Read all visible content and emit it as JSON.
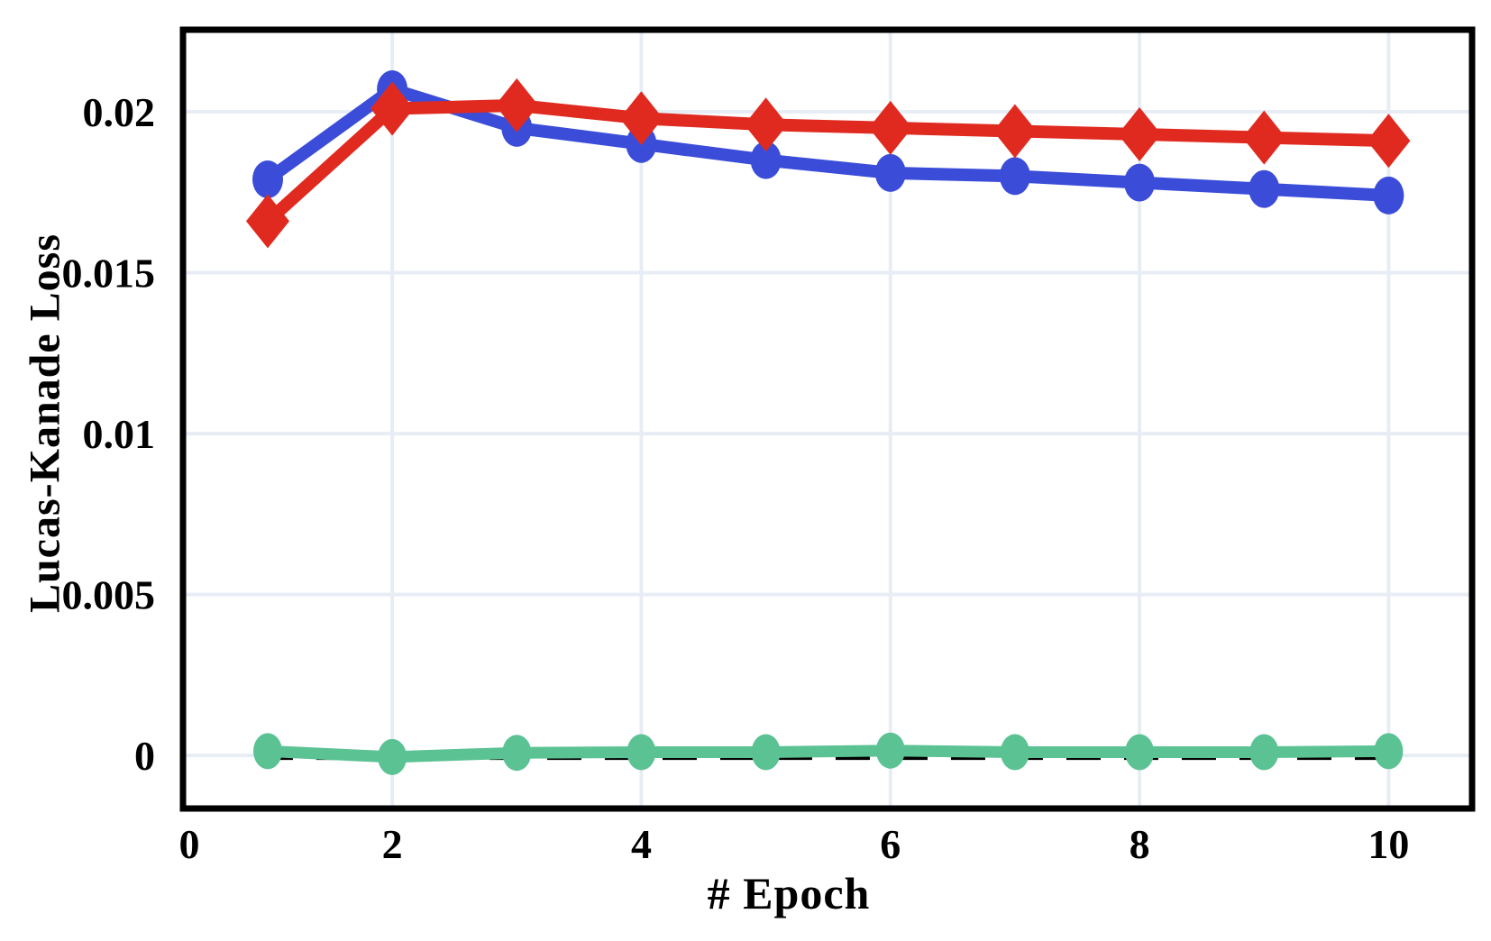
{
  "chart_data": {
    "type": "line",
    "title": "",
    "xlabel": "# Epoch",
    "ylabel": "Lucas-Kanade Loss",
    "x": [
      1,
      2,
      3,
      4,
      5,
      6,
      7,
      8,
      9,
      10
    ],
    "series": [
      {
        "id": "series_red_diamond",
        "marker": "diamond",
        "color": "#E02A20",
        "values": [
          0.0166,
          0.0201,
          0.0202,
          0.0198,
          0.0196,
          0.0195,
          0.0194,
          0.0193,
          0.0192,
          0.0191
        ]
      },
      {
        "id": "series_blue_circle",
        "marker": "circle",
        "color": "#3B4DD8",
        "values": [
          0.0179,
          0.0207,
          0.0195,
          0.019,
          0.0185,
          0.0181,
          0.018,
          0.0178,
          0.0176,
          0.0174
        ]
      },
      {
        "id": "series_green_circle",
        "marker": "circle",
        "color": "#5BC294",
        "values": [
          0.00013,
          -5e-05,
          8e-05,
          0.0001,
          0.0001,
          0.00015,
          0.0001,
          0.0001,
          0.0001,
          0.00013
        ]
      }
    ],
    "reference_line": {
      "value": 0,
      "style": "dashed",
      "color": "#000000"
    },
    "xticks": {
      "values": [
        0,
        2,
        4,
        6,
        8,
        10
      ],
      "labels": [
        "0",
        "2",
        "4",
        "6",
        "8",
        "10"
      ]
    },
    "yticks": {
      "values": [
        0,
        0.005,
        0.01,
        0.015,
        0.02
      ],
      "labels": [
        "0",
        "0.005",
        "0.01",
        "0.015",
        "0.02"
      ]
    },
    "xlim": [
      0.32,
      10.67
    ],
    "ylim": [
      -0.00165,
      0.02255
    ],
    "grid": true,
    "grid_color": "#E8EDF5",
    "legend": "none",
    "plot_border_color": "#000000",
    "background_color": "#FFFFFF"
  },
  "labels": {
    "x_axis_title": "# Epoch",
    "y_axis_title": "Lucas-Kanade Loss"
  }
}
